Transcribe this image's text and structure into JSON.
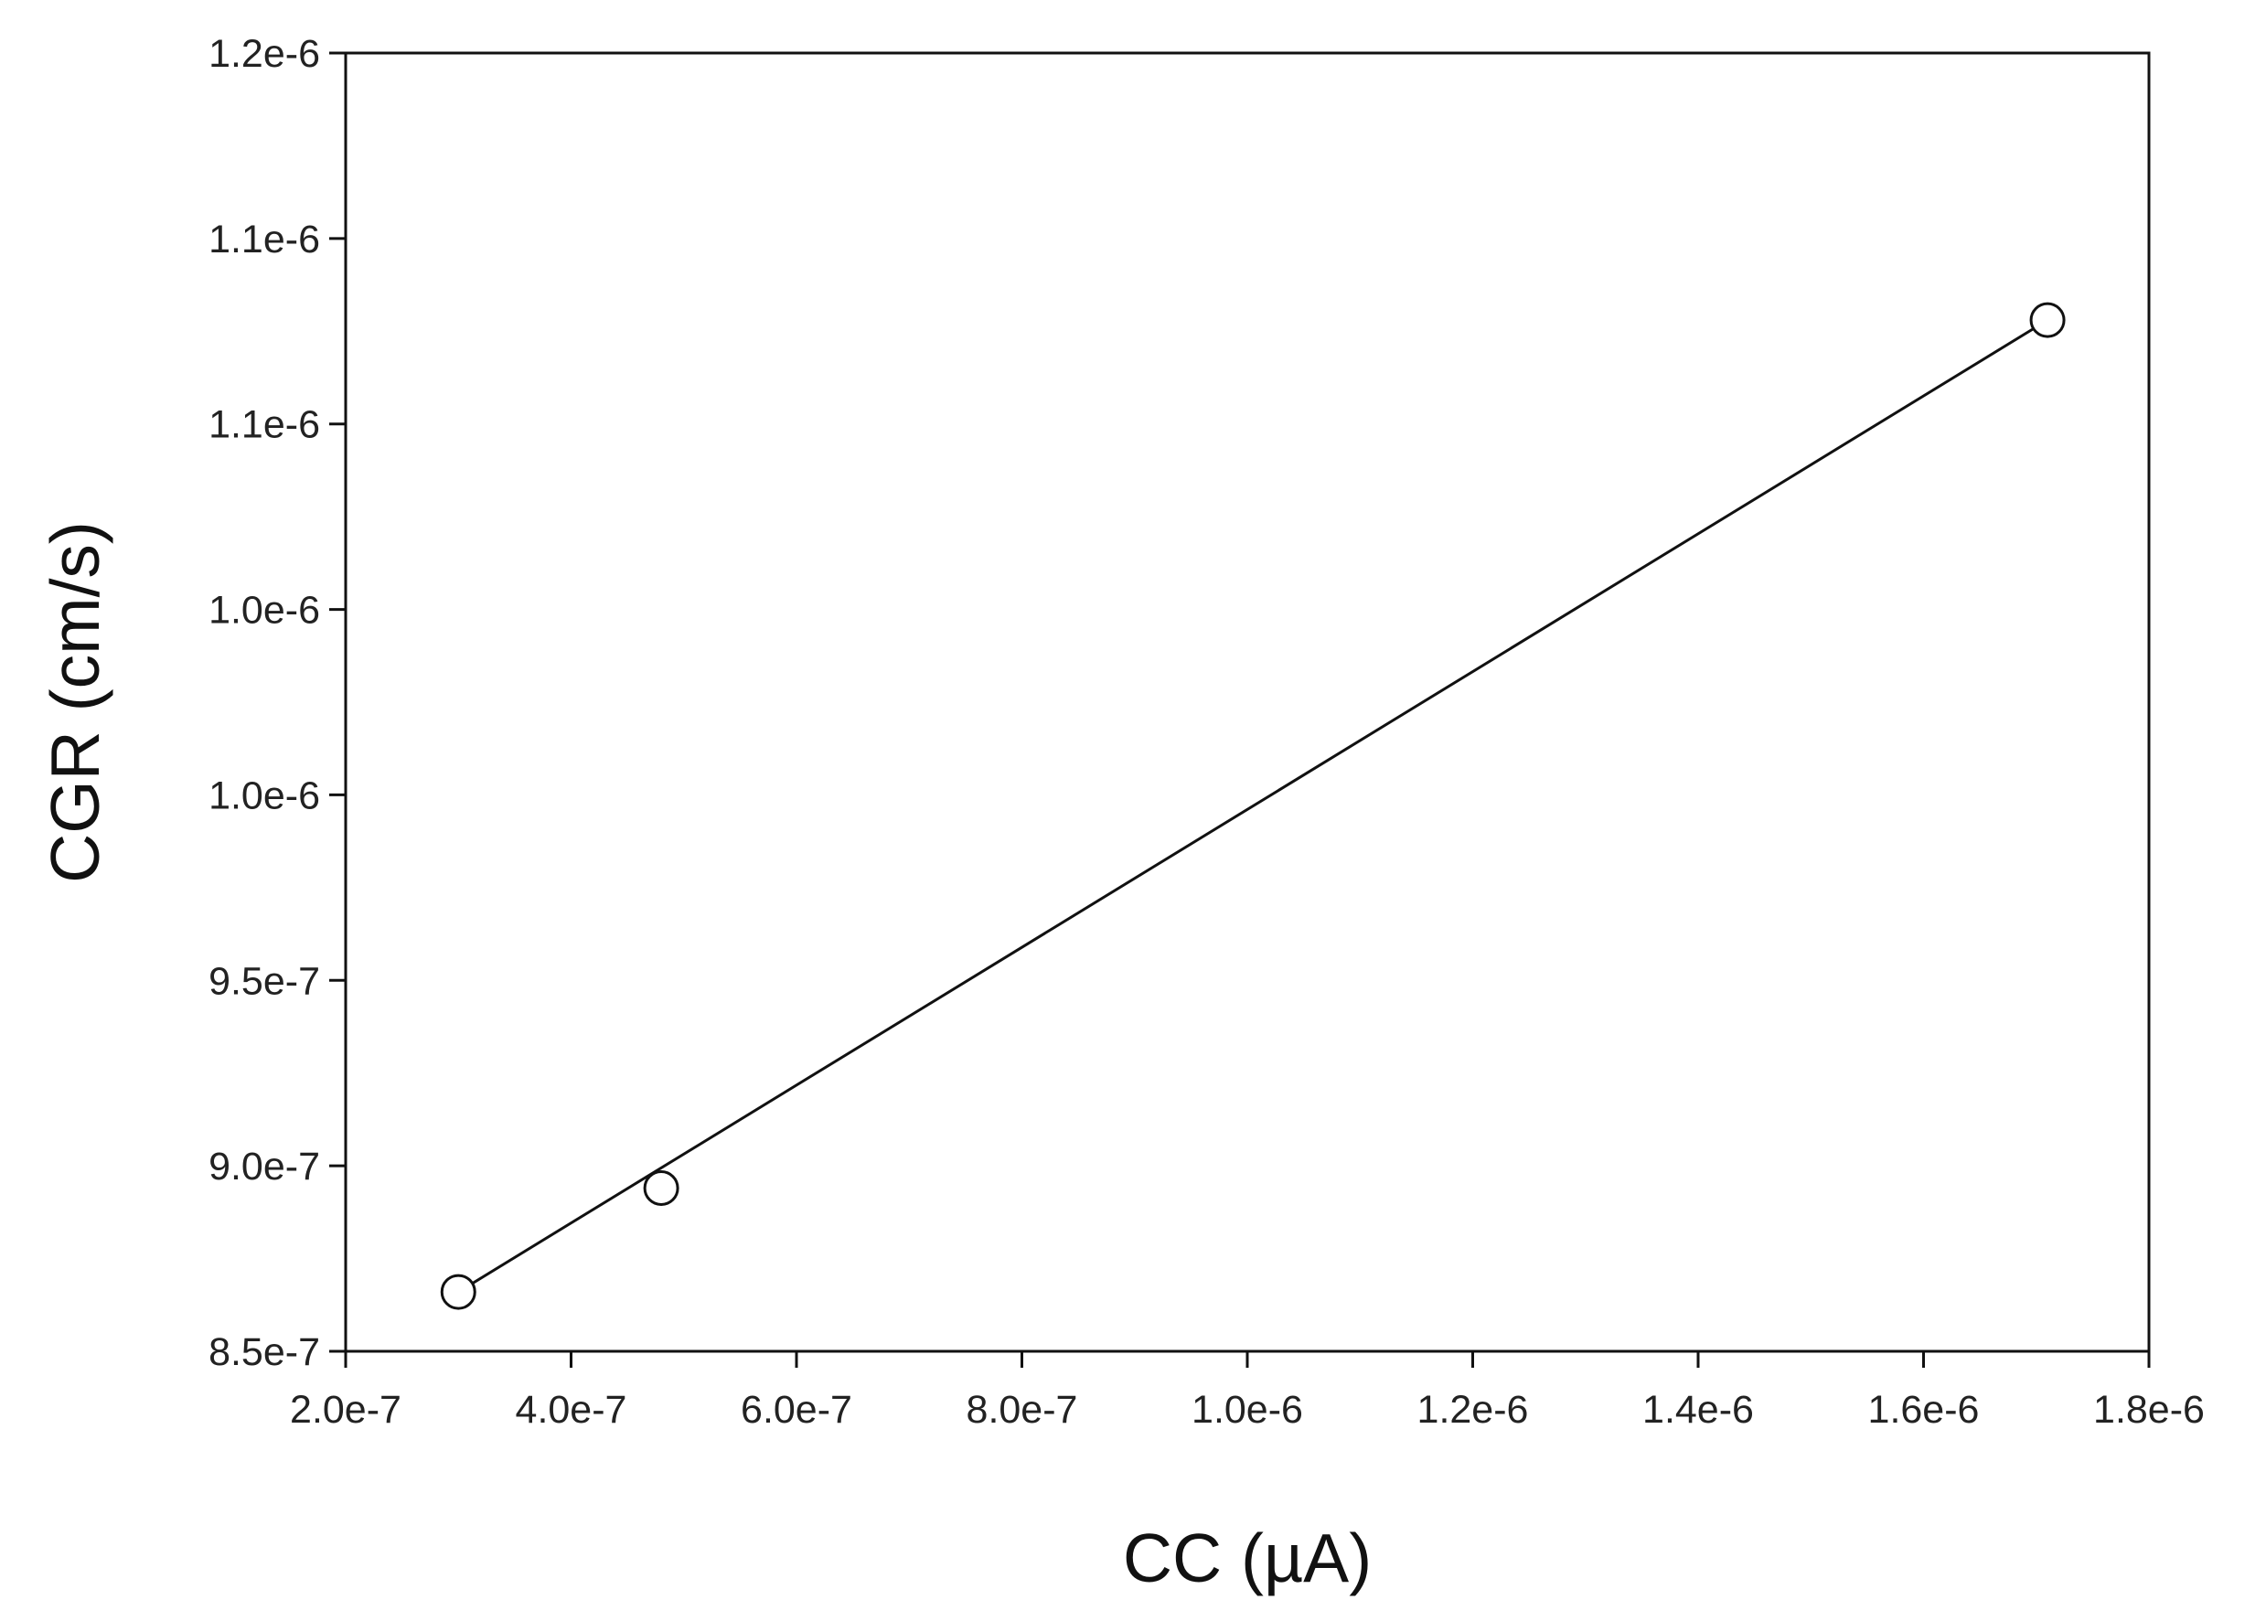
{
  "chart_data": {
    "type": "scatter",
    "title": "",
    "xlabel": "CC (µA)",
    "ylabel": "CGR (cm/s)",
    "xlim": [
      2e-07,
      1.8e-06
    ],
    "ylim": [
      8.5e-07,
      1.2e-06
    ],
    "grid": false,
    "x_ticks": [
      {
        "value": 2e-07,
        "label": "2.0e-7"
      },
      {
        "value": 4e-07,
        "label": "4.0e-7"
      },
      {
        "value": 6e-07,
        "label": "6.0e-7"
      },
      {
        "value": 8e-07,
        "label": "8.0e-7"
      },
      {
        "value": 1e-06,
        "label": "1.0e-6"
      },
      {
        "value": 1.2e-06,
        "label": "1.2e-6"
      },
      {
        "value": 1.4e-06,
        "label": "1.4e-6"
      },
      {
        "value": 1.6e-06,
        "label": "1.6e-6"
      },
      {
        "value": 1.8e-06,
        "label": "1.8e-6"
      }
    ],
    "y_ticks": [
      {
        "value": 8.5e-07,
        "label": "8.5e-7"
      },
      {
        "value": 9e-07,
        "label": "9.0e-7"
      },
      {
        "value": 9.5e-07,
        "label": "9.5e-7"
      },
      {
        "value": 1e-06,
        "label": "1.0e-6"
      },
      {
        "value": 1.05e-06,
        "label": "1.0e-6"
      },
      {
        "value": 1.1e-06,
        "label": "1.1e-6"
      },
      {
        "value": 1.15e-06,
        "label": "1.1e-6"
      },
      {
        "value": 1.2e-06,
        "label": "1.2e-6"
      }
    ],
    "series": [
      {
        "marker": "open-circle",
        "points": [
          {
            "x": 3e-07,
            "y": 8.66e-07
          },
          {
            "x": 4.8e-07,
            "y": 8.94e-07
          },
          {
            "x": 1.71e-06,
            "y": 1.128e-06
          }
        ]
      }
    ],
    "fit_line": {
      "from": {
        "x": 3e-07,
        "y": 8.66e-07
      },
      "to": {
        "x": 1.71e-06,
        "y": 1.128e-06
      }
    }
  }
}
